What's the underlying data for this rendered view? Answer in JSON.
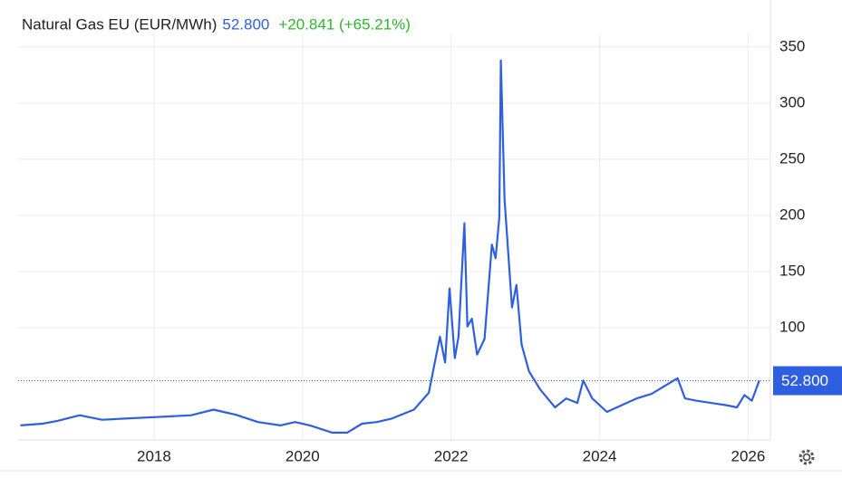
{
  "chart_data": {
    "type": "line",
    "title": "Natural Gas EU (EUR/MWh)",
    "price": "52.800",
    "change": "+20.841 (+65.21%)",
    "x": [
      2016.2,
      2016.5,
      2016.7,
      2017.0,
      2017.3,
      2017.6,
      2017.9,
      2018.2,
      2018.5,
      2018.8,
      2019.1,
      2019.4,
      2019.7,
      2019.9,
      2020.1,
      2020.4,
      2020.6,
      2020.8,
      2021.0,
      2021.2,
      2021.5,
      2021.7,
      2021.85,
      2021.92,
      2021.98,
      2022.05,
      2022.1,
      2022.18,
      2022.22,
      2022.28,
      2022.35,
      2022.45,
      2022.55,
      2022.6,
      2022.65,
      2022.67,
      2022.72,
      2022.75,
      2022.82,
      2022.88,
      2022.95,
      2023.05,
      2023.2,
      2023.4,
      2023.55,
      2023.7,
      2023.78,
      2023.9,
      2024.1,
      2024.3,
      2024.5,
      2024.7,
      2024.9,
      2025.05,
      2025.15,
      2025.3,
      2025.5,
      2025.7,
      2025.85,
      2025.95,
      2026.05,
      2026.15
    ],
    "series": [
      {
        "name": "Natural Gas EU",
        "color": "#2f5fe0",
        "values": [
          13,
          14.5,
          17,
          22,
          18,
          19,
          20,
          21,
          22,
          27,
          22.5,
          16,
          13,
          16,
          13,
          6.5,
          6.5,
          14.5,
          16,
          19,
          27,
          42,
          92,
          69,
          135,
          73,
          92,
          193,
          101,
          108,
          76,
          90,
          174,
          162,
          198,
          338,
          214,
          186,
          118,
          138,
          85,
          61,
          45,
          29,
          37,
          33,
          53,
          37,
          25,
          31,
          37,
          41,
          49,
          55,
          37,
          35,
          33,
          31,
          29,
          40,
          35,
          52.8
        ]
      }
    ],
    "xlim": [
      2016.17,
      2026.3
    ],
    "xticks": [
      2018,
      2020,
      2022,
      2024,
      2026
    ],
    "ylim": [
      0,
      362
    ],
    "yticks": [
      100,
      150,
      200,
      250,
      300,
      350
    ],
    "grid": true
  }
}
